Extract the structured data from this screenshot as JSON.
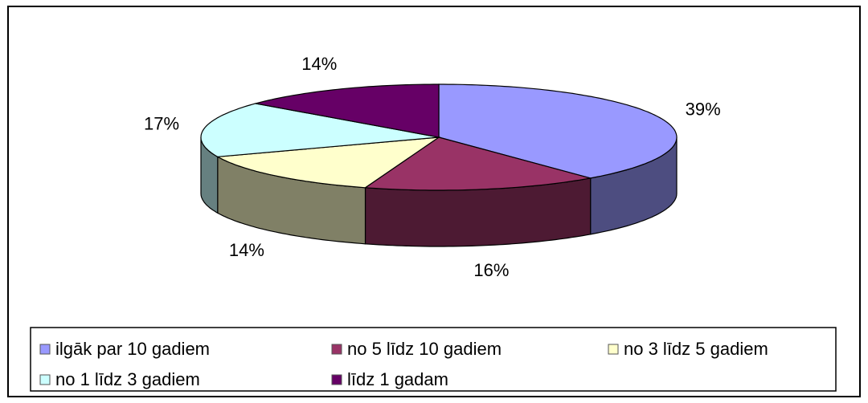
{
  "chart_data": {
    "type": "pie",
    "categories": [
      "ilgāk par 10 gadiem",
      "no 5 līdz 10 gadiem",
      "no 3 līdz 5 gadiem",
      "no 1 līdz 3 gadiem",
      "līdz 1 gadam"
    ],
    "values": [
      39,
      16,
      14,
      17,
      14
    ],
    "value_labels": [
      "39%",
      "16%",
      "14%",
      "17%",
      "14%"
    ],
    "colors": [
      "#9999ff",
      "#993366",
      "#ffffcc",
      "#ccffff",
      "#660066"
    ],
    "legend": "bottom"
  }
}
